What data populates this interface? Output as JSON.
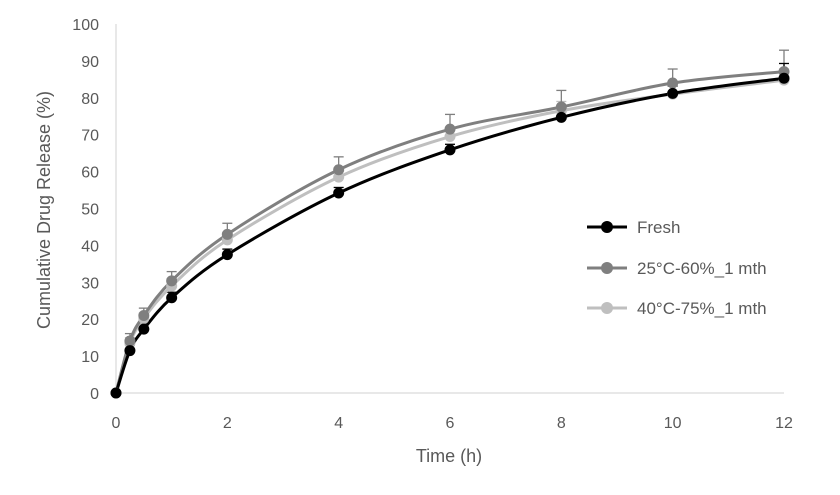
{
  "chart_data": {
    "type": "line",
    "title": "",
    "xlabel": "Time (h)",
    "ylabel": "Cumulative Drug Release (%)",
    "xlim": [
      0,
      12
    ],
    "ylim": [
      0,
      100
    ],
    "x_ticks": [
      0,
      2,
      4,
      6,
      8,
      10,
      12
    ],
    "y_ticks": [
      0,
      10,
      20,
      30,
      40,
      50,
      60,
      70,
      80,
      90,
      100
    ],
    "grid": false,
    "smooth_lines": true,
    "error_bars": true,
    "legend_position": "right",
    "x": [
      0,
      0.25,
      0.5,
      1,
      2,
      4,
      6,
      8,
      10,
      12
    ],
    "series": [
      {
        "name": "Fresh",
        "color": "#000000",
        "values": [
          0,
          11.5,
          17.3,
          25.8,
          37.5,
          54.2,
          65.9,
          74.7,
          81.2,
          85.3
        ],
        "error": [
          0,
          1.5,
          1.5,
          1.5,
          1.5,
          1.5,
          1.5,
          1.8,
          2.0,
          4.0
        ]
      },
      {
        "name": "25°C-60%_1 mth",
        "color": "#7f7f7f",
        "values": [
          0,
          14.1,
          21.0,
          30.4,
          43.0,
          60.5,
          71.5,
          77.5,
          84.0,
          87.1
        ],
        "error": [
          0,
          2.0,
          2.0,
          2.5,
          3.0,
          3.5,
          4.0,
          4.5,
          3.8,
          5.8
        ]
      },
      {
        "name": "40°C-75%_1 mth",
        "color": "#bfbfbf",
        "values": [
          0,
          13.5,
          20.2,
          29.0,
          41.5,
          58.5,
          69.5,
          76.5,
          81.0,
          84.8
        ],
        "error": [
          0,
          1.5,
          1.5,
          2.0,
          2.0,
          2.5,
          2.5,
          2.5,
          2.5,
          3.0
        ]
      }
    ]
  }
}
